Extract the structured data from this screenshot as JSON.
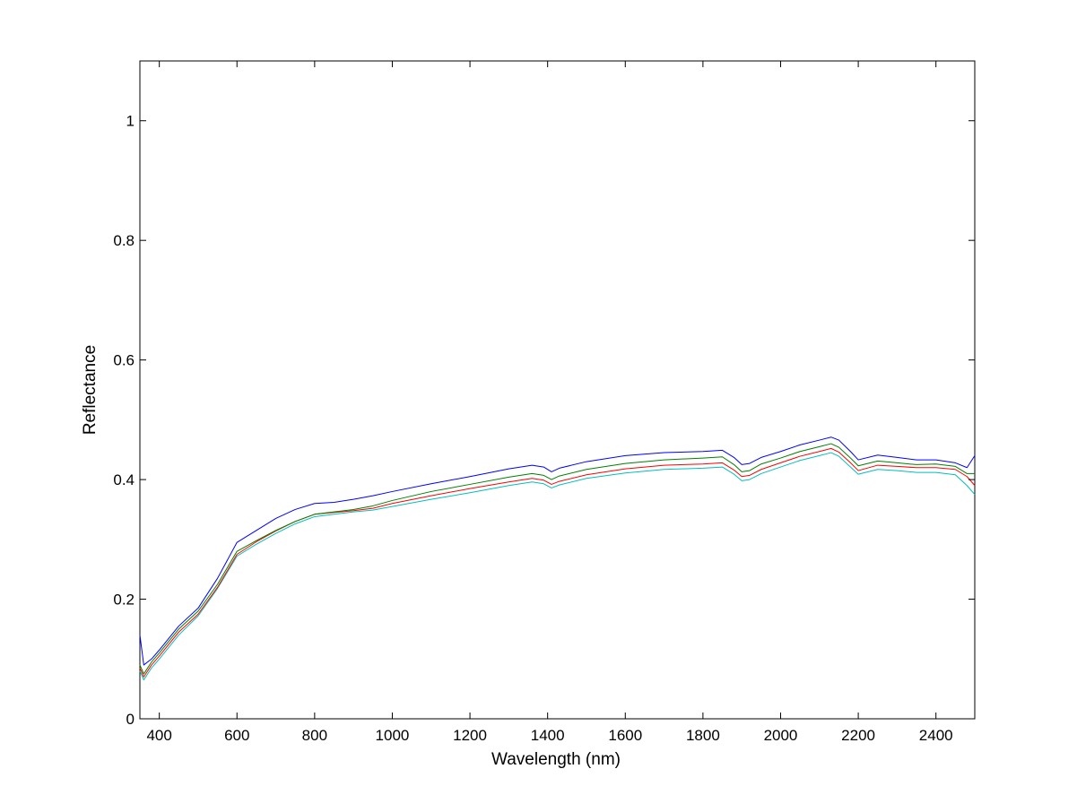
{
  "chart_data": {
    "type": "line",
    "title": "",
    "xlabel": "Wavelength (nm)",
    "ylabel": "Reflectance",
    "xlim": [
      350,
      2500
    ],
    "ylim": [
      0,
      1.1
    ],
    "x_ticks": [
      400,
      600,
      800,
      1000,
      1200,
      1400,
      1600,
      1800,
      2000,
      2200,
      2400
    ],
    "x_tick_labels": [
      "400",
      "600",
      "800",
      "1000",
      "1200",
      "1400",
      "1600",
      "1800",
      "2000",
      "2200",
      "2400"
    ],
    "y_ticks": [
      0,
      0.2,
      0.4,
      0.6,
      0.8,
      1
    ],
    "y_tick_labels": [
      "0",
      "0.2",
      "0.4",
      "0.6",
      "0.8",
      "1"
    ],
    "grid": false,
    "legend": "none",
    "series": [
      {
        "color": "#0000ff",
        "x": [
          350,
          360,
          380,
          400,
          450,
          500,
          550,
          600,
          650,
          700,
          750,
          800,
          850,
          900,
          950,
          1000,
          1100,
          1200,
          1300,
          1360,
          1390,
          1410,
          1430,
          1500,
          1600,
          1700,
          1800,
          1850,
          1880,
          1900,
          1920,
          1950,
          2000,
          2050,
          2100,
          2130,
          2150,
          2180,
          2200,
          2250,
          2300,
          2350,
          2400,
          2450,
          2480,
          2500
        ],
        "y": [
          0.14,
          0.09,
          0.1,
          0.115,
          0.155,
          0.185,
          0.235,
          0.295,
          0.315,
          0.335,
          0.35,
          0.36,
          0.362,
          0.367,
          0.373,
          0.38,
          0.393,
          0.405,
          0.418,
          0.424,
          0.421,
          0.413,
          0.419,
          0.43,
          0.44,
          0.445,
          0.447,
          0.449,
          0.437,
          0.425,
          0.427,
          0.437,
          0.447,
          0.458,
          0.466,
          0.471,
          0.466,
          0.447,
          0.433,
          0.441,
          0.437,
          0.433,
          0.433,
          0.428,
          0.42,
          0.44
        ]
      },
      {
        "color": "#008000",
        "x": [
          350,
          360,
          380,
          400,
          450,
          500,
          550,
          600,
          650,
          700,
          750,
          800,
          850,
          900,
          950,
          1000,
          1100,
          1200,
          1300,
          1360,
          1390,
          1410,
          1430,
          1500,
          1600,
          1700,
          1800,
          1850,
          1880,
          1900,
          1920,
          1950,
          2000,
          2050,
          2100,
          2130,
          2150,
          2180,
          2200,
          2250,
          2300,
          2350,
          2400,
          2450,
          2480,
          2500
        ],
        "y": [
          0.09,
          0.075,
          0.095,
          0.11,
          0.15,
          0.18,
          0.225,
          0.28,
          0.298,
          0.315,
          0.33,
          0.342,
          0.346,
          0.35,
          0.356,
          0.365,
          0.38,
          0.392,
          0.404,
          0.41,
          0.407,
          0.4,
          0.406,
          0.417,
          0.427,
          0.433,
          0.436,
          0.438,
          0.425,
          0.413,
          0.415,
          0.426,
          0.436,
          0.447,
          0.455,
          0.46,
          0.454,
          0.436,
          0.423,
          0.431,
          0.428,
          0.425,
          0.426,
          0.422,
          0.41,
          0.41
        ]
      },
      {
        "color": "#ff0000",
        "x": [
          350,
          360,
          380,
          400,
          450,
          500,
          550,
          600,
          650,
          700,
          750,
          800,
          850,
          900,
          950,
          1000,
          1100,
          1200,
          1300,
          1360,
          1390,
          1410,
          1430,
          1500,
          1600,
          1700,
          1800,
          1850,
          1880,
          1900,
          1920,
          1950,
          2000,
          2050,
          2100,
          2130,
          2150,
          2180,
          2200,
          2250,
          2300,
          2350,
          2400,
          2450,
          2480,
          2500
        ],
        "y": [
          0.085,
          0.07,
          0.09,
          0.105,
          0.145,
          0.175,
          0.22,
          0.275,
          0.296,
          0.314,
          0.33,
          0.342,
          0.345,
          0.348,
          0.352,
          0.36,
          0.373,
          0.385,
          0.396,
          0.402,
          0.399,
          0.392,
          0.397,
          0.408,
          0.418,
          0.424,
          0.426,
          0.428,
          0.416,
          0.405,
          0.407,
          0.417,
          0.428,
          0.439,
          0.447,
          0.452,
          0.446,
          0.428,
          0.415,
          0.424,
          0.422,
          0.42,
          0.42,
          0.417,
          0.405,
          0.39
        ]
      },
      {
        "color": "#00bfbf",
        "x": [
          350,
          360,
          380,
          400,
          450,
          500,
          550,
          600,
          650,
          700,
          750,
          800,
          850,
          900,
          950,
          1000,
          1100,
          1200,
          1300,
          1360,
          1390,
          1410,
          1430,
          1500,
          1600,
          1700,
          1800,
          1850,
          1880,
          1900,
          1920,
          1950,
          2000,
          2050,
          2100,
          2130,
          2150,
          2180,
          2200,
          2250,
          2300,
          2350,
          2400,
          2450,
          2480,
          2500
        ],
        "y": [
          0.08,
          0.065,
          0.085,
          0.1,
          0.14,
          0.172,
          0.218,
          0.272,
          0.292,
          0.31,
          0.326,
          0.338,
          0.342,
          0.346,
          0.349,
          0.355,
          0.367,
          0.378,
          0.39,
          0.396,
          0.393,
          0.386,
          0.391,
          0.402,
          0.411,
          0.417,
          0.419,
          0.421,
          0.409,
          0.398,
          0.4,
          0.41,
          0.421,
          0.432,
          0.44,
          0.445,
          0.439,
          0.421,
          0.409,
          0.417,
          0.415,
          0.412,
          0.412,
          0.408,
          0.39,
          0.375
        ]
      }
    ]
  }
}
